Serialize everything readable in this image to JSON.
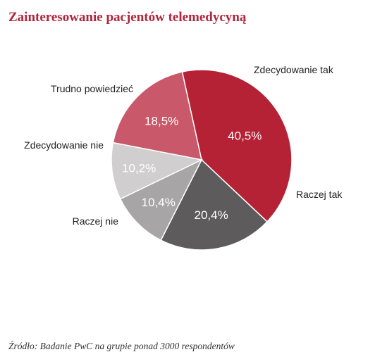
{
  "title": "Zainteresowanie pacjentów telemedycyną",
  "source": {
    "label": "Źródło:",
    "text": "Badanie PwC na grupie ponad 3000 respondentów"
  },
  "chart_data": {
    "type": "pie",
    "title": "Zainteresowanie pacjentów telemedycyną",
    "slices": [
      {
        "label": "Zdecydowanie tak",
        "value": 18.5,
        "value_label": "18,5%",
        "color": "#c8586a"
      },
      {
        "label": "Raczej tak",
        "value": 40.5,
        "value_label": "40,5%",
        "color": "#b52236"
      },
      {
        "label": "Raczej nie",
        "value": 20.4,
        "value_label": "20,4%",
        "color": "#5e5b5c"
      },
      {
        "label": "Zdecydowanie nie",
        "value": 10.4,
        "value_label": "10,4%",
        "color": "#a8a5a6"
      },
      {
        "label": "Trudno powiedzieć",
        "value": 10.2,
        "value_label": "10,2%",
        "color": "#d0cecf"
      }
    ]
  }
}
